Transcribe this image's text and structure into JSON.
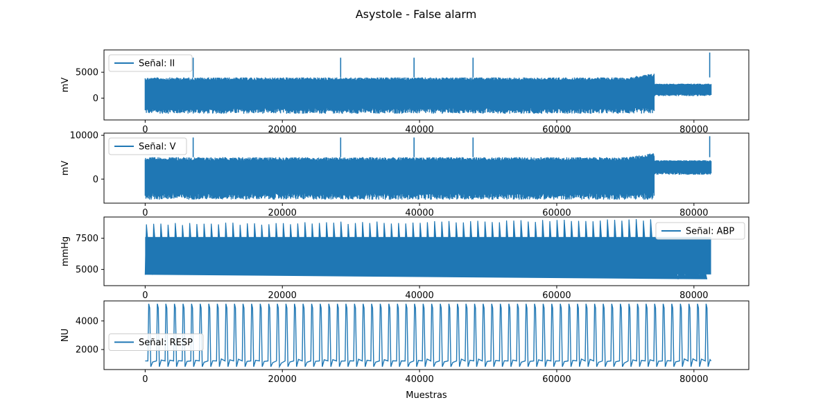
{
  "figure": {
    "title": "Asystole - False alarm",
    "xlabel": "Muestras",
    "series_color": "#1f77b4"
  },
  "chart_data": [
    {
      "type": "line",
      "legend": "Señal: II",
      "legend_position": "upper-left",
      "ylabel": "mV",
      "xlim": [
        -6000,
        88000
      ],
      "ylim": [
        -4200,
        9300
      ],
      "xticks": [
        0,
        20000,
        40000,
        60000,
        80000
      ],
      "xtick_labels": [
        "0",
        "20000",
        "40000",
        "60000",
        "80000"
      ],
      "yticks": [
        0,
        5000
      ],
      "ytick_labels": [
        "0",
        "5000"
      ],
      "signal": {
        "n_samples": 82500,
        "band_low": -3000,
        "band_high": 4000,
        "band_end": 74200,
        "band_end_high": 4800,
        "tail_low": 400,
        "tail_high": 2800,
        "spikes": [
          [
            7000,
            7800
          ],
          [
            28500,
            7800
          ],
          [
            39200,
            7800
          ],
          [
            47800,
            7800
          ],
          [
            82300,
            8800
          ]
        ]
      }
    },
    {
      "type": "line",
      "legend": "Señal: V",
      "legend_position": "upper-left",
      "ylabel": "mV",
      "xlim": [
        -6000,
        88000
      ],
      "ylim": [
        -5500,
        10500
      ],
      "xticks": [
        0,
        20000,
        40000,
        60000,
        80000
      ],
      "xtick_labels": [
        "0",
        "20000",
        "40000",
        "60000",
        "80000"
      ],
      "yticks": [
        0,
        10000
      ],
      "ytick_labels": [
        "0",
        "10000"
      ],
      "signal": {
        "n_samples": 82500,
        "band_low": -4700,
        "band_high": 5000,
        "band_end": 74200,
        "band_end_high": 6000,
        "tail_low": 1000,
        "tail_high": 4300,
        "spikes": [
          [
            7000,
            9500
          ],
          [
            28500,
            9500
          ],
          [
            39200,
            9500
          ],
          [
            47800,
            9500
          ],
          [
            82300,
            9800
          ]
        ]
      }
    },
    {
      "type": "line",
      "legend": "Señal: ABP",
      "legend_position": "upper-right",
      "ylabel": "mmHg",
      "xlim": [
        -6000,
        88000
      ],
      "ylim": [
        3700,
        9200
      ],
      "xticks": [
        0,
        20000,
        40000,
        60000,
        80000
      ],
      "xtick_labels": [
        "0",
        "20000",
        "40000",
        "60000",
        "80000"
      ],
      "yticks": [
        5000,
        7500
      ],
      "ytick_labels": [
        "5000",
        "7500"
      ],
      "signal": {
        "n_samples": 82500,
        "beat_period": 1050,
        "low_start": 4600,
        "low_end": 4500,
        "high_start": 8600,
        "high_end": 9000,
        "fade_start": 73500,
        "fade_low": 4200,
        "fade_high": 7200
      }
    },
    {
      "type": "line",
      "legend": "Señal: RESP",
      "legend_position": "center-left",
      "ylabel": "NU",
      "xlim": [
        -6000,
        88000
      ],
      "ylim": [
        600,
        5400
      ],
      "xticks": [
        0,
        20000,
        40000,
        60000,
        80000
      ],
      "xtick_labels": [
        "0",
        "20000",
        "40000",
        "60000",
        "80000"
      ],
      "yticks": [
        2000,
        4000
      ],
      "ytick_labels": [
        "2000",
        "4000"
      ],
      "signal": {
        "n_samples": 82500,
        "breath_period": 1250,
        "peak": 5200,
        "baseline": 1200,
        "trough": 800
      }
    }
  ]
}
